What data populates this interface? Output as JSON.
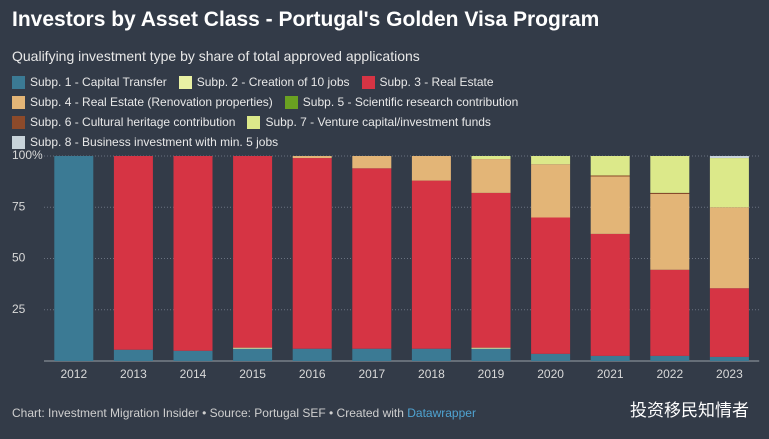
{
  "chart_data": {
    "type": "stacked_bar",
    "title": "Investors by Asset Class  - Portugal's Golden Visa Program",
    "subtitle": "Qualifying investment type by share of total approved applications",
    "categories": [
      "2012",
      "2013",
      "2014",
      "2015",
      "2016",
      "2017",
      "2018",
      "2019",
      "2020",
      "2021",
      "2022",
      "2023"
    ],
    "series": [
      {
        "name": "Subp. 1 - Capital Transfer",
        "color": "#3b7a94",
        "values": [
          100,
          5.5,
          5,
          6,
          6,
          6,
          6,
          6,
          3.5,
          2.5,
          2.5,
          2
        ]
      },
      {
        "name": "Subp. 2 - Creation of 10 jobs",
        "color": "#e9f1a4",
        "values": [
          0,
          0,
          0,
          0.5,
          0,
          0,
          0,
          0.5,
          0,
          0,
          0,
          0
        ]
      },
      {
        "name": "Subp. 3 - Real Estate",
        "color": "#d63444",
        "values": [
          0,
          94.5,
          95,
          93.5,
          93,
          88,
          82,
          75.5,
          66.5,
          59.5,
          42,
          33.5
        ]
      },
      {
        "name": "Subp. 4 - Real Estate (Renovation properties)",
        "color": "#e3b577",
        "values": [
          0,
          0,
          0,
          0,
          1,
          6,
          12,
          16.5,
          26,
          28,
          37,
          39.5
        ]
      },
      {
        "name": "Subp. 5 - Scientific research contribution",
        "color": "#6aa121",
        "values": [
          0,
          0,
          0,
          0,
          0,
          0,
          0,
          0,
          0,
          0,
          0,
          0
        ]
      },
      {
        "name": "Subp. 6 - Cultural heritage contribution",
        "color": "#8c4a2a",
        "values": [
          0,
          0,
          0,
          0,
          0,
          0,
          0,
          0,
          0,
          0.5,
          0.5,
          0
        ]
      },
      {
        "name": "Subp. 7 - Venture capital/investment funds",
        "color": "#dce98a",
        "values": [
          0,
          0,
          0,
          0,
          0,
          0,
          0,
          1.5,
          4,
          9.5,
          18,
          24
        ]
      },
      {
        "name": "Subp. 8 - Business investment with min. 5 jobs",
        "color": "#c8d3da",
        "values": [
          0,
          0,
          0,
          0,
          0,
          0,
          0,
          0,
          0,
          0,
          0,
          1
        ]
      }
    ],
    "ylim": [
      0,
      100
    ],
    "yticks": [
      25,
      50,
      75,
      {
        "value": 100,
        "label": "100%"
      }
    ],
    "grid": true,
    "footer_text": "Chart: Investment Migration Insider • Source: Portugal SEF • Created with",
    "footer_link": "Datawrapper",
    "watermark": "投资移民知情者"
  }
}
